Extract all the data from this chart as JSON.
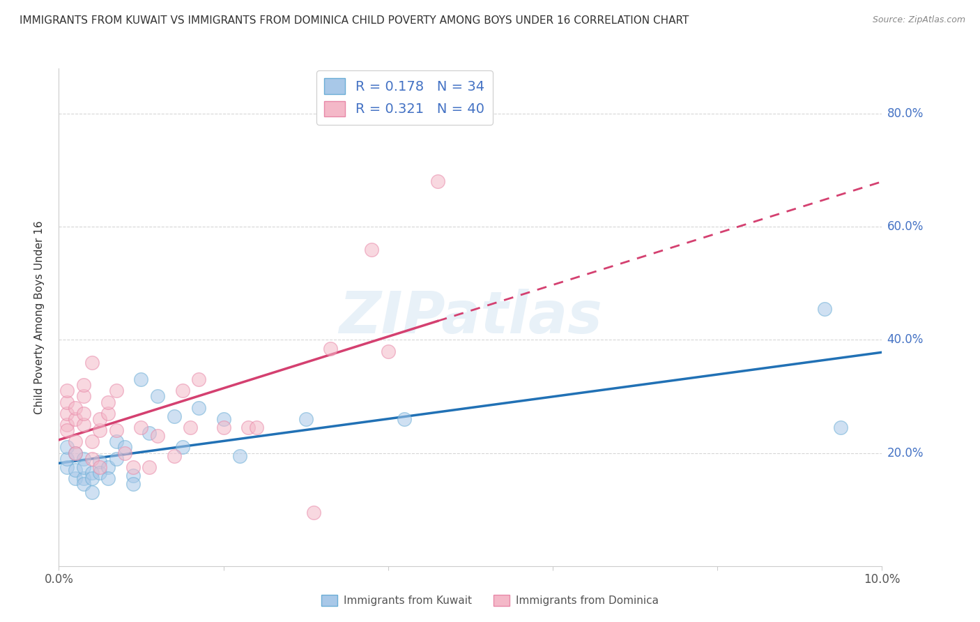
{
  "title": "IMMIGRANTS FROM KUWAIT VS IMMIGRANTS FROM DOMINICA CHILD POVERTY AMONG BOYS UNDER 16 CORRELATION CHART",
  "source": "Source: ZipAtlas.com",
  "ylabel": "Child Poverty Among Boys Under 16",
  "xlim": [
    0.0,
    0.1
  ],
  "ylim": [
    0.0,
    0.88
  ],
  "xticks": [
    0.0,
    0.02,
    0.04,
    0.06,
    0.08,
    0.1
  ],
  "ytick_positions": [
    0.2,
    0.4,
    0.6,
    0.8
  ],
  "ytick_labels": [
    "20.0%",
    "40.0%",
    "60.0%",
    "80.0%"
  ],
  "kuwait_color": "#a8c8e8",
  "kuwait_edge_color": "#6baed6",
  "dominica_color": "#f4b8c8",
  "dominica_edge_color": "#e888a8",
  "kuwait_line_color": "#2171b5",
  "dominica_line_color": "#d44070",
  "kuwait_R": 0.178,
  "kuwait_N": 34,
  "dominica_R": 0.321,
  "dominica_N": 40,
  "watermark": "ZIPatlas",
  "kuwait_x": [
    0.001,
    0.001,
    0.001,
    0.002,
    0.002,
    0.002,
    0.003,
    0.003,
    0.003,
    0.003,
    0.004,
    0.004,
    0.004,
    0.005,
    0.005,
    0.006,
    0.006,
    0.007,
    0.007,
    0.008,
    0.009,
    0.009,
    0.01,
    0.011,
    0.012,
    0.014,
    0.015,
    0.017,
    0.02,
    0.022,
    0.03,
    0.042,
    0.093,
    0.095
  ],
  "kuwait_y": [
    0.175,
    0.19,
    0.21,
    0.155,
    0.17,
    0.2,
    0.155,
    0.19,
    0.145,
    0.175,
    0.165,
    0.13,
    0.155,
    0.185,
    0.165,
    0.175,
    0.155,
    0.22,
    0.19,
    0.21,
    0.16,
    0.145,
    0.33,
    0.235,
    0.3,
    0.265,
    0.21,
    0.28,
    0.26,
    0.195,
    0.26,
    0.26,
    0.455,
    0.245
  ],
  "dominica_x": [
    0.001,
    0.001,
    0.001,
    0.001,
    0.001,
    0.002,
    0.002,
    0.002,
    0.002,
    0.003,
    0.003,
    0.003,
    0.003,
    0.004,
    0.004,
    0.004,
    0.005,
    0.005,
    0.005,
    0.006,
    0.006,
    0.007,
    0.007,
    0.008,
    0.009,
    0.01,
    0.011,
    0.012,
    0.014,
    0.015,
    0.016,
    0.017,
    0.02,
    0.023,
    0.024,
    0.031,
    0.033,
    0.038,
    0.04,
    0.046
  ],
  "dominica_y": [
    0.25,
    0.27,
    0.29,
    0.31,
    0.24,
    0.26,
    0.22,
    0.28,
    0.2,
    0.3,
    0.25,
    0.32,
    0.27,
    0.36,
    0.19,
    0.22,
    0.175,
    0.24,
    0.26,
    0.27,
    0.29,
    0.24,
    0.31,
    0.2,
    0.175,
    0.245,
    0.175,
    0.23,
    0.195,
    0.31,
    0.245,
    0.33,
    0.245,
    0.245,
    0.245,
    0.095,
    0.385,
    0.56,
    0.38,
    0.68
  ],
  "grid_color": "#cccccc",
  "background_color": "#ffffff",
  "title_fontsize": 11,
  "axis_label_fontsize": 11,
  "tick_fontsize": 12,
  "legend_fontsize": 14
}
